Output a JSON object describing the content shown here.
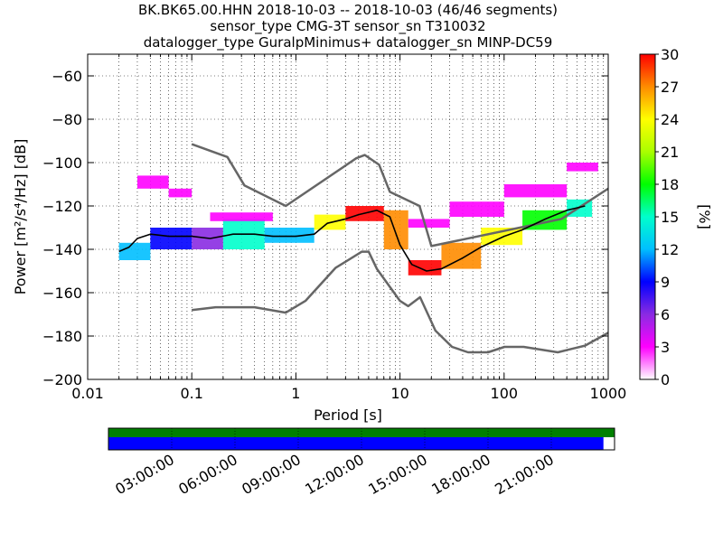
{
  "title_lines": [
    "BK.BK65.00.HHN   2018-10-03 -- 2018-10-03  (46/46 segments)",
    "sensor_type CMG-3T sensor_sn T310032",
    "datalogger_type GuralpMinimus+ datalogger_sn MINP-DC59"
  ],
  "chart_data": {
    "type": "heatmap",
    "xlabel": "Period [s]",
    "ylabel": "Power [m²/s⁴/Hz] [dB]",
    "xscale": "log",
    "xlim": [
      0.01,
      1000
    ],
    "ylim": [
      -200,
      -50
    ],
    "xticks": [
      0.01,
      0.1,
      1,
      10,
      100,
      1000
    ],
    "xtick_labels": [
      "0.01",
      "0.1",
      "1",
      "10",
      "100",
      "1000"
    ],
    "yticks": [
      -200,
      -180,
      -160,
      -140,
      -120,
      -100,
      -80,
      -60
    ],
    "ytick_labels": [
      "−200",
      "−180",
      "−160",
      "−140",
      "−120",
      "−100",
      "−80",
      "−60"
    ],
    "grid": true,
    "colorbar": {
      "label": "[%]",
      "range": [
        0,
        30
      ],
      "ticks": [
        0,
        3,
        6,
        9,
        12,
        15,
        18,
        21,
        24,
        27,
        30
      ],
      "tick_labels": [
        "0",
        "3",
        "6",
        "9",
        "12",
        "15",
        "18",
        "21",
        "24",
        "27",
        "30"
      ],
      "colors": [
        "#ffffff",
        "#ff00ff",
        "#8a2be2",
        "#0000ff",
        "#00bfff",
        "#00ffcc",
        "#00ff00",
        "#aaff00",
        "#ffff00",
        "#ff8c00",
        "#ff0000"
      ]
    },
    "series": [
      {
        "role": "NHNM",
        "color": "#666666",
        "points": [
          [
            0.1,
            -91.5
          ],
          [
            0.22,
            -97.4
          ],
          [
            0.32,
            -110.5
          ],
          [
            0.8,
            -120
          ],
          [
            3.8,
            -98
          ],
          [
            4.6,
            -96.5
          ],
          [
            6.3,
            -101
          ],
          [
            8,
            -113.5
          ],
          [
            15.4,
            -120
          ],
          [
            20,
            -138.5
          ],
          [
            354.8,
            -126
          ],
          [
            1000,
            -112
          ]
        ]
      },
      {
        "role": "NLNM",
        "color": "#666666",
        "points": [
          [
            0.1,
            -168
          ],
          [
            0.17,
            -166.7
          ],
          [
            0.4,
            -166.7
          ],
          [
            0.8,
            -169.2
          ],
          [
            1.24,
            -163.7
          ],
          [
            2.4,
            -148.6
          ],
          [
            4.3,
            -141.1
          ],
          [
            5,
            -141.1
          ],
          [
            6,
            -149
          ],
          [
            10,
            -163.8
          ],
          [
            12,
            -166.2
          ],
          [
            15.6,
            -162.1
          ],
          [
            21.9,
            -177.5
          ],
          [
            31.6,
            -185
          ],
          [
            45,
            -187.5
          ],
          [
            70,
            -187.5
          ],
          [
            101,
            -185
          ],
          [
            154,
            -185
          ],
          [
            328,
            -187.5
          ],
          [
            600,
            -184.4
          ],
          [
            1000,
            -178.5
          ]
        ]
      },
      {
        "role": "mode",
        "color": "#000000",
        "points": [
          [
            0.02,
            -141
          ],
          [
            0.025,
            -139
          ],
          [
            0.03,
            -135
          ],
          [
            0.04,
            -133
          ],
          [
            0.06,
            -134
          ],
          [
            0.1,
            -134
          ],
          [
            0.15,
            -135
          ],
          [
            0.25,
            -133
          ],
          [
            0.4,
            -133
          ],
          [
            0.6,
            -134
          ],
          [
            1,
            -134
          ],
          [
            1.5,
            -133
          ],
          [
            2,
            -128
          ],
          [
            3,
            -126
          ],
          [
            4,
            -124
          ],
          [
            6,
            -122
          ],
          [
            8,
            -125
          ],
          [
            10,
            -138
          ],
          [
            13,
            -147
          ],
          [
            18,
            -150
          ],
          [
            25,
            -149
          ],
          [
            40,
            -144
          ],
          [
            60,
            -139
          ],
          [
            100,
            -134
          ],
          [
            150,
            -131
          ],
          [
            250,
            -126
          ],
          [
            400,
            -122
          ],
          [
            600,
            -120
          ]
        ]
      }
    ],
    "density": [
      {
        "x": [
          0.02,
          0.04
        ],
        "y": [
          -145,
          -137
        ],
        "pct": 12
      },
      {
        "x": [
          0.04,
          0.1
        ],
        "y": [
          -140,
          -130
        ],
        "pct": 9
      },
      {
        "x": [
          0.1,
          0.2
        ],
        "y": [
          -140,
          -130
        ],
        "pct": 6
      },
      {
        "x": [
          0.2,
          0.5
        ],
        "y": [
          -140,
          -126
        ],
        "pct": 15
      },
      {
        "x": [
          0.5,
          1.5
        ],
        "y": [
          -137,
          -130
        ],
        "pct": 13
      },
      {
        "x": [
          1.5,
          3
        ],
        "y": [
          -131,
          -124
        ],
        "pct": 24
      },
      {
        "x": [
          3,
          7
        ],
        "y": [
          -127,
          -120
        ],
        "pct": 30
      },
      {
        "x": [
          7,
          12
        ],
        "y": [
          -140,
          -122
        ],
        "pct": 27
      },
      {
        "x": [
          12,
          25
        ],
        "y": [
          -152,
          -145
        ],
        "pct": 29
      },
      {
        "x": [
          25,
          60
        ],
        "y": [
          -149,
          -137
        ],
        "pct": 27
      },
      {
        "x": [
          60,
          150
        ],
        "y": [
          -138,
          -130
        ],
        "pct": 25
      },
      {
        "x": [
          150,
          400
        ],
        "y": [
          -131,
          -122
        ],
        "pct": 18
      },
      {
        "x": [
          400,
          700
        ],
        "y": [
          -125,
          -117
        ],
        "pct": 15
      },
      {
        "x": [
          0.15,
          0.6
        ],
        "y": [
          -127,
          -123
        ],
        "pct": 2
      },
      {
        "x": [
          0.03,
          0.06
        ],
        "y": [
          -112,
          -106
        ],
        "pct": 2
      },
      {
        "x": [
          0.06,
          0.1
        ],
        "y": [
          -116,
          -112
        ],
        "pct": 2
      },
      {
        "x": [
          12,
          30
        ],
        "y": [
          -130,
          -126
        ],
        "pct": 2
      },
      {
        "x": [
          30,
          100
        ],
        "y": [
          -125,
          -118
        ],
        "pct": 2
      },
      {
        "x": [
          100,
          400
        ],
        "y": [
          -116,
          -110
        ],
        "pct": 2
      },
      {
        "x": [
          400,
          800
        ],
        "y": [
          -104,
          -100
        ],
        "pct": 2
      }
    ],
    "timeline": {
      "tick_labels": [
        "03:00:00",
        "06:00:00",
        "09:00:00",
        "12:00:00",
        "15:00:00",
        "18:00:00",
        "21:00:00"
      ],
      "top_bar_color": "#008000",
      "bottom_bar_color": "#0000ff",
      "bottom_coverage": 0.978
    }
  }
}
